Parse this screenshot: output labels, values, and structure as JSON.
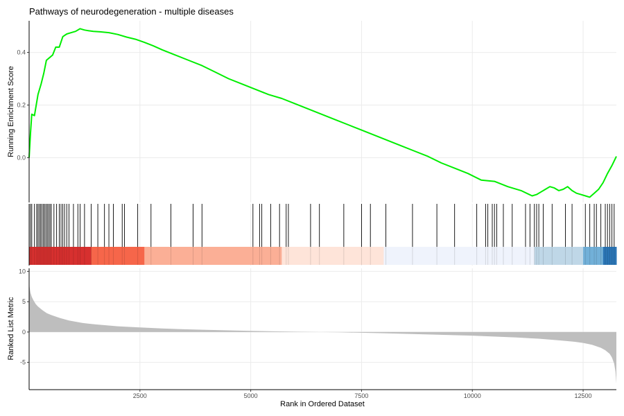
{
  "chart_data": {
    "type": "line",
    "title": "Pathways of neurodegeneration - multiple diseases",
    "xlabel": "Rank in Ordered Dataset",
    "xlim": [
      0,
      13250
    ],
    "x_ticks": [
      2500,
      5000,
      7500,
      10000,
      12500
    ],
    "x_tick_labels": [
      "2500",
      "5000",
      "7500",
      "10000",
      "12500"
    ],
    "es_panel": {
      "ylabel": "Running Enrichment Score",
      "ylim": [
        -0.17,
        0.52
      ],
      "y_ticks": [
        0.0,
        0.2,
        0.4
      ],
      "y_tick_labels": [
        "0.0",
        "0.2",
        "0.4"
      ],
      "line_color": "#00ee00",
      "series": [
        {
          "x": [
            0,
            30,
            60,
            120,
            200,
            270,
            330,
            390,
            460,
            530,
            600,
            680,
            760,
            850,
            950,
            1050,
            1150,
            1250,
            1350,
            1450,
            1600,
            1800,
            2000,
            2200,
            2400,
            2600,
            2800,
            3000,
            3300,
            3600,
            3900,
            4200,
            4500,
            4800,
            5100,
            5400,
            5700,
            6000,
            6300,
            6600,
            6900,
            7200,
            7500,
            7800,
            8100,
            8400,
            8700,
            9000,
            9300,
            9600,
            9900,
            10200,
            10500,
            10800,
            11100,
            11350,
            11450,
            11550,
            11650,
            11750,
            11850,
            11950,
            12050,
            12150,
            12250,
            12350,
            12450,
            12550,
            12650,
            12750,
            12850,
            12950,
            13050,
            13150,
            13250
          ],
          "y": [
            0.0,
            0.09,
            0.165,
            0.16,
            0.24,
            0.28,
            0.32,
            0.37,
            0.38,
            0.39,
            0.42,
            0.42,
            0.46,
            0.47,
            0.475,
            0.48,
            0.49,
            0.485,
            0.482,
            0.48,
            0.478,
            0.475,
            0.468,
            0.458,
            0.45,
            0.438,
            0.425,
            0.41,
            0.39,
            0.37,
            0.35,
            0.325,
            0.3,
            0.28,
            0.26,
            0.24,
            0.225,
            0.205,
            0.185,
            0.165,
            0.145,
            0.125,
            0.105,
            0.085,
            0.065,
            0.045,
            0.025,
            0.005,
            -0.02,
            -0.04,
            -0.06,
            -0.085,
            -0.09,
            -0.11,
            -0.125,
            -0.145,
            -0.14,
            -0.13,
            -0.12,
            -0.11,
            -0.115,
            -0.125,
            -0.12,
            -0.11,
            -0.125,
            -0.135,
            -0.14,
            -0.145,
            -0.15,
            -0.135,
            -0.12,
            -0.095,
            -0.06,
            -0.03,
            0.005
          ]
        }
      ]
    },
    "hit_panel": {
      "hit_ranks": [
        30,
        60,
        120,
        170,
        200,
        230,
        260,
        290,
        320,
        350,
        380,
        410,
        440,
        470,
        500,
        560,
        620,
        680,
        720,
        760,
        800,
        850,
        900,
        1000,
        1100,
        1150,
        1250,
        1400,
        1550,
        1700,
        1800,
        1900,
        2100,
        2150,
        2450,
        2750,
        3200,
        3700,
        3900,
        5050,
        5200,
        5250,
        5450,
        5650,
        5800,
        5850,
        6350,
        6550,
        7100,
        7500,
        7700,
        8050,
        8650,
        9200,
        9600,
        10100,
        10300,
        10350,
        10450,
        10500,
        10550,
        10700,
        10900,
        11200,
        11300,
        11400,
        11450,
        11500,
        11600,
        11800,
        12100,
        12250,
        12550,
        12650,
        12750,
        12800,
        12900,
        13000,
        13050,
        13100,
        13150,
        13200
      ],
      "color_bands": [
        {
          "from": 0,
          "to": 1400,
          "color": "#d7302f"
        },
        {
          "from": 1400,
          "to": 2600,
          "color": "#f6664a"
        },
        {
          "from": 2600,
          "to": 5700,
          "color": "#fbaf96"
        },
        {
          "from": 5700,
          "to": 8000,
          "color": "#fee4d9"
        },
        {
          "from": 8000,
          "to": 11400,
          "color": "#eff3fc"
        },
        {
          "from": 11400,
          "to": 12500,
          "color": "#bfd7e7"
        },
        {
          "from": 12500,
          "to": 12950,
          "color": "#72b0d8"
        },
        {
          "from": 12950,
          "to": 13250,
          "color": "#2b75b5"
        }
      ]
    },
    "metric_panel": {
      "ylabel": "Ranked List Metric",
      "ylim": [
        -9.5,
        10.5
      ],
      "y_ticks": [
        10,
        5,
        0,
        -5
      ],
      "y_tick_labels": [
        "10",
        "5",
        "0",
        "-5"
      ],
      "fill_color": "#bebebe",
      "series": [
        {
          "x": [
            0,
            10,
            30,
            60,
            100,
            150,
            200,
            300,
            400,
            500,
            700,
            900,
            1200,
            1500,
            2000,
            2500,
            3000,
            3500,
            4000,
            5000,
            6000,
            7000,
            8000,
            8500,
            9000,
            10000,
            11000,
            11500,
            12000,
            12300,
            12500,
            12700,
            12900,
            13000,
            13100,
            13150,
            13200,
            13230,
            13250
          ],
          "y": [
            9.5,
            7.5,
            6.5,
            5.8,
            5.2,
            4.6,
            4.2,
            3.6,
            3.1,
            2.8,
            2.3,
            1.9,
            1.5,
            1.25,
            0.95,
            0.75,
            0.58,
            0.45,
            0.35,
            0.18,
            0.05,
            -0.05,
            -0.2,
            -0.3,
            -0.4,
            -0.6,
            -0.9,
            -1.1,
            -1.4,
            -1.6,
            -1.8,
            -2.1,
            -2.6,
            -3.0,
            -3.6,
            -4.2,
            -5.2,
            -6.5,
            -8.5
          ]
        }
      ]
    }
  }
}
